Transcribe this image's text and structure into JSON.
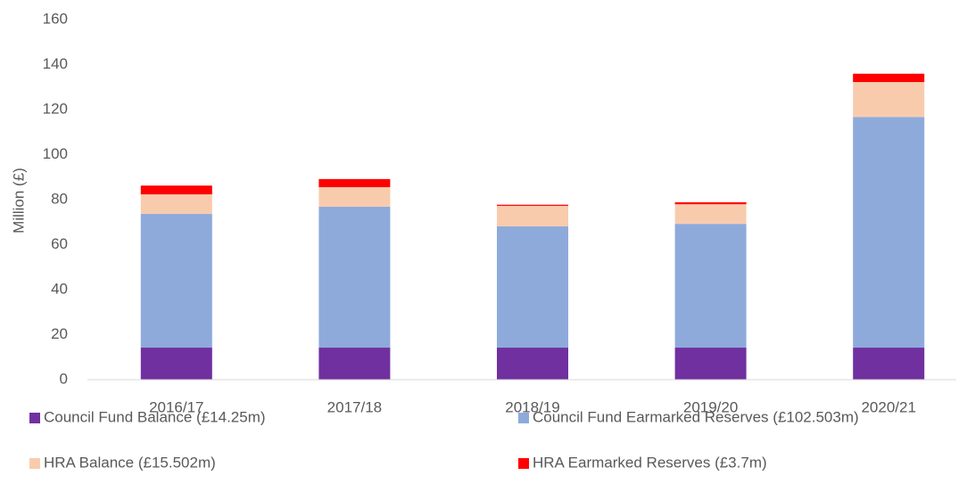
{
  "chart_data": {
    "type": "stacked_bar",
    "y_label": "Million (£)",
    "categories": [
      "2016/17",
      "2017/18",
      "2018/19",
      "2019/20",
      "2020/21"
    ],
    "series": [
      {
        "name": "Council Fund Balance (£14.25m)",
        "color": "#7030a0",
        "values": [
          14.25,
          14.25,
          14.25,
          14.25,
          14.25
        ]
      },
      {
        "name": "Council Fund Earmarked Reserves (£102.503m)",
        "color": "#8eaadb",
        "values": [
          59.4,
          62.6,
          53.9,
          55.0,
          102.503
        ]
      },
      {
        "name": "HRA Balance (£15.502m)",
        "color": "#f8cbad",
        "values": [
          8.7,
          8.7,
          9.1,
          8.7,
          15.502
        ]
      },
      {
        "name": "HRA Earmarked Reserves (£3.7m)",
        "color": "#ff0000",
        "values": [
          3.9,
          3.6,
          0.5,
          0.9,
          3.7
        ]
      }
    ],
    "ylim": [
      0,
      160
    ],
    "yticks": [
      0,
      20,
      40,
      60,
      80,
      100,
      120,
      140,
      160
    ]
  }
}
